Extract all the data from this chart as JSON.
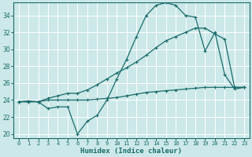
{
  "xlabel": "Humidex (Indice chaleur)",
  "bg_color": "#cce8e8",
  "grid_color": "#ffffff",
  "line_color": "#1a6b6b",
  "xlim": [
    -0.5,
    23.5
  ],
  "ylim": [
    19.5,
    35.5
  ],
  "yticks": [
    20,
    22,
    24,
    26,
    28,
    30,
    32,
    34
  ],
  "xticks": [
    0,
    1,
    2,
    3,
    4,
    5,
    6,
    7,
    8,
    9,
    10,
    11,
    12,
    13,
    14,
    15,
    16,
    17,
    18,
    19,
    20,
    21,
    22,
    23
  ],
  "line1_y": [
    23.8,
    23.9,
    23.8,
    23.0,
    23.2,
    23.2,
    20.0,
    21.5,
    22.2,
    24.0,
    26.5,
    28.8,
    31.5,
    34.0,
    35.2,
    35.5,
    35.2,
    34.0,
    33.8,
    29.8,
    32.0,
    27.0,
    25.3,
    25.5
  ],
  "line2_y": [
    23.8,
    23.8,
    23.8,
    24.2,
    24.5,
    24.8,
    24.8,
    25.2,
    25.8,
    26.5,
    27.2,
    27.8,
    28.5,
    29.3,
    30.2,
    31.0,
    31.5,
    32.0,
    32.5,
    32.5,
    31.8,
    31.2,
    25.5,
    25.5
  ],
  "line3_y": [
    23.8,
    23.8,
    23.8,
    24.0,
    24.0,
    24.0,
    24.0,
    24.0,
    24.1,
    24.2,
    24.3,
    24.5,
    24.7,
    24.9,
    25.0,
    25.1,
    25.2,
    25.3,
    25.4,
    25.5,
    25.5,
    25.5,
    25.5,
    25.5
  ],
  "xlabel_fontsize": 6.5,
  "tick_fontsize": 5.0,
  "ytick_fontsize": 5.5,
  "linewidth": 0.9,
  "markersize": 2.5
}
